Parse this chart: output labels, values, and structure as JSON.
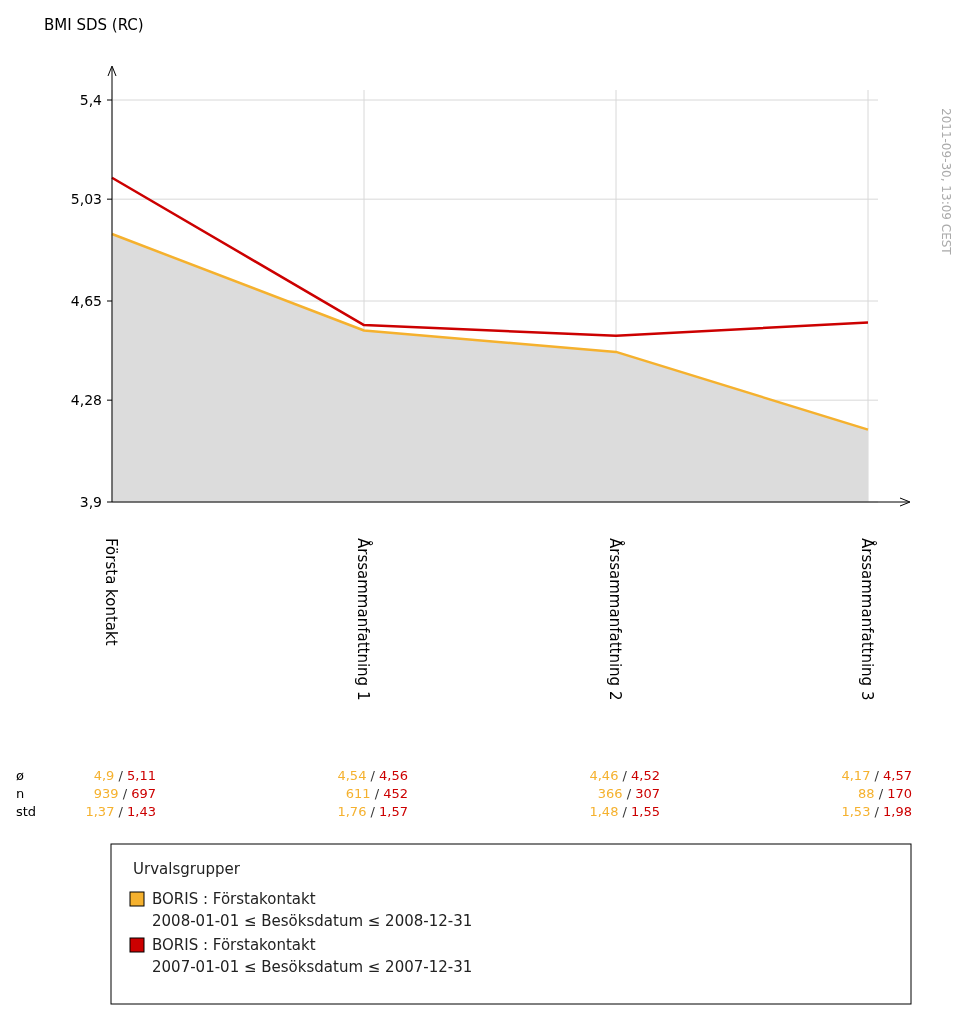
{
  "chart_data": {
    "type": "line",
    "ylabel": "BMI SDS (RC)",
    "categories": [
      "Första kontakt",
      "Årssammanfattning 1",
      "Årssammanfattning 2",
      "Årssammanfattning 3"
    ],
    "series": [
      {
        "name": "BORIS : Förstakontakt\n2008-01-01 ≤ Besöksdatum ≤ 2008-12-31",
        "type": "area",
        "color": "#f5b12e",
        "values": [
          4.9,
          4.54,
          4.46,
          4.17
        ]
      },
      {
        "name": "BORIS : Förstakontakt\n2007-01-01 ≤ Besöksdatum ≤ 2007-12-31",
        "color": "#cc0000",
        "values": [
          5.11,
          4.56,
          4.52,
          4.57
        ]
      }
    ],
    "ylim": [
      3.9,
      5.4
    ],
    "yticks": [
      {
        "value": 3.9,
        "label": "3,9"
      },
      {
        "value": 4.28,
        "label": "4,28"
      },
      {
        "value": 4.65,
        "label": "4,65"
      },
      {
        "value": 5.03,
        "label": "5,03"
      },
      {
        "value": 5.4,
        "label": "5,4"
      }
    ],
    "grid": true,
    "legend": "bottom",
    "legend_title": "Urvalsgrupper",
    "annotations": [
      "2011-09-30, 13:09 CEST",
      "ø",
      "n",
      "std",
      "4,9 / 5,11",
      "4,54 / 4,56",
      "4,46 / 4,52",
      "4,17 / 4,57",
      "939 / 697",
      "611 / 452",
      "366 / 307",
      "88 / 170",
      "1,37 / 1,43",
      "1,76 / 1,57",
      "1,48 / 1,55",
      "1,53 / 1,98"
    ]
  }
}
